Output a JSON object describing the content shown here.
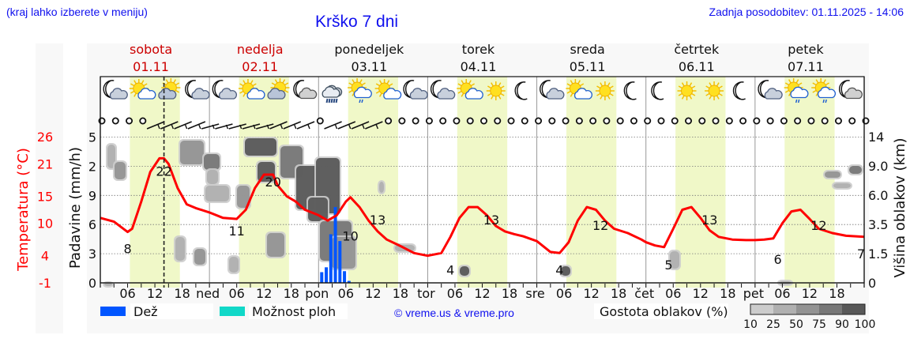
{
  "header": {
    "hint": "(kraj lahko izberete v meniju)",
    "title": "Krško 7 dni",
    "last_update": "Zadnja posodobitev: 01.11.2025 - 14:06"
  },
  "days": [
    {
      "name": "sobota",
      "date": "01.11",
      "weekend": true,
      "abbr": ""
    },
    {
      "name": "nedelja",
      "date": "02.11",
      "weekend": true,
      "abbr": "ned"
    },
    {
      "name": "ponedeljek",
      "date": "03.11",
      "weekend": false,
      "abbr": "pon"
    },
    {
      "name": "torek",
      "date": "04.11",
      "weekend": false,
      "abbr": "tor"
    },
    {
      "name": "sreda",
      "date": "05.11",
      "weekend": false,
      "abbr": "sre"
    },
    {
      "name": "četrtek",
      "date": "06.11",
      "weekend": false,
      "abbr": "čet"
    },
    {
      "name": "petek",
      "date": "07.11",
      "weekend": false,
      "abbr": "pet"
    }
  ],
  "icons": [
    [
      "moon-cloud",
      "sun-cloud",
      "sun-cloud-gray",
      "moon-cloud"
    ],
    [
      "moon-cloud",
      "sun-cloud",
      "sun-cloud-gray",
      "moon-cloud-gray"
    ],
    [
      "cloud-rain",
      "sun-cloud-drizzle",
      "sun-cloud",
      "moon-cloud"
    ],
    [
      "moon-cloud",
      "sun-cloud",
      "sun",
      "moon"
    ],
    [
      "moon-cloud",
      "sun-cloud",
      "sun",
      "moon"
    ],
    [
      "moon",
      "sun",
      "sun",
      "moon"
    ],
    [
      "moon-cloud",
      "sun-cloud-drizzle",
      "sun-cloud-drizzle",
      "moon-cloud-gray"
    ]
  ],
  "legend": {
    "rain_label": "Dež",
    "rain_color": "#0055ff",
    "showers_label": "Možnost ploh",
    "showers_color": "#11d8c8",
    "credit": "© vreme.us & vreme.pro",
    "cloud_density_label": "Gostota oblakov (%)",
    "cloud_density_steps": [
      "10",
      "25",
      "50",
      "75",
      "90",
      "100"
    ],
    "cloud_density_colors": [
      "#cccccc",
      "#b0b0b0",
      "#939393",
      "#777777",
      "#585858"
    ]
  },
  "colors": {
    "temperature": "#ff0000",
    "weekend_day": "#cc0000",
    "link_blue": "#1010ee",
    "daylight_band": "#f0f8c8"
  },
  "chart_data": {
    "type": "line",
    "title": "Krško 7 dni",
    "xlabel": "",
    "x_tick_labels": [
      "06",
      "12",
      "18",
      "ned",
      "06",
      "12",
      "18",
      "pon",
      "06",
      "12",
      "18",
      "tor",
      "06",
      "12",
      "18",
      "sre",
      "06",
      "12",
      "18",
      "čet",
      "06",
      "12",
      "18",
      "pet",
      "06",
      "12",
      "18"
    ],
    "now_marker_hour": 14,
    "axes": {
      "temperature": {
        "label": "Temperatura (°C)",
        "ticks": [
          "-1",
          "4",
          "10",
          "15",
          "21",
          "26"
        ],
        "range": [
          -1,
          26
        ]
      },
      "precipitation": {
        "label": "Padavine (mm/h)",
        "ticks": [
          "0",
          "3",
          "6",
          "9",
          "2",
          "5"
        ],
        "range": [
          0,
          15
        ]
      },
      "cloud_height": {
        "label": "Višina oblakov (km)",
        "ticks": [
          "0",
          "1.5",
          "3.5",
          "6.0",
          "9.0",
          "14"
        ]
      }
    },
    "series": [
      {
        "name": "Temperatura",
        "unit": "°C",
        "hours": [
          0,
          3,
          6,
          7,
          9,
          11,
          13,
          14,
          15,
          17,
          19,
          21,
          24,
          27,
          30,
          32,
          34,
          36,
          38,
          39,
          41,
          43,
          45,
          48,
          50,
          52,
          54,
          55,
          57,
          59,
          61,
          63,
          66,
          69,
          72,
          75,
          77,
          79,
          81,
          83,
          85,
          87,
          89,
          91,
          93,
          96,
          99,
          101,
          103,
          105,
          107,
          109,
          111,
          113,
          116,
          119,
          120,
          122,
          124,
          126,
          128,
          130,
          132,
          134,
          136,
          139,
          142,
          144,
          146,
          148,
          150,
          152,
          154,
          156,
          158,
          161,
          164,
          168
        ],
        "values": [
          11,
          10.3,
          8.4,
          9,
          14,
          19.5,
          22,
          22,
          21,
          16.5,
          13.5,
          12.8,
          12,
          11,
          10.8,
          12.5,
          16.5,
          19,
          19,
          17,
          15,
          14,
          12.5,
          11.5,
          10.5,
          11.5,
          14,
          14.8,
          13,
          10.5,
          8.5,
          7,
          5.8,
          4.5,
          4,
          4.5,
          7.5,
          11,
          13,
          13,
          11.5,
          9.5,
          8.5,
          8,
          7.6,
          6.7,
          4.7,
          4.5,
          6.5,
          10.5,
          13,
          12.5,
          10.5,
          9,
          8.2,
          7,
          6.5,
          5.9,
          5.6,
          9,
          12.5,
          13,
          11,
          8.7,
          7.5,
          7,
          6.9,
          6.9,
          7,
          7.2,
          10,
          12.2,
          12.5,
          10.8,
          9,
          8.2,
          7.7,
          7.5
        ],
        "labels": [
          {
            "hour": 6,
            "value": 8,
            "text": "8"
          },
          {
            "hour": 14,
            "value": 22,
            "text": "22"
          },
          {
            "hour": 30,
            "value": 11,
            "text": "11"
          },
          {
            "hour": 38,
            "value": 20,
            "text": "20"
          },
          {
            "hour": 55,
            "value": 10,
            "text": "10"
          },
          {
            "hour": 61,
            "value": 13,
            "text": "13"
          },
          {
            "hour": 77,
            "value": 4,
            "text": "4"
          },
          {
            "hour": 86,
            "value": 13,
            "text": "13"
          },
          {
            "hour": 101,
            "value": 4,
            "text": "4"
          },
          {
            "hour": 110,
            "value": 12,
            "text": "12"
          },
          {
            "hour": 125,
            "value": 5,
            "text": "5"
          },
          {
            "hour": 134,
            "value": 13,
            "text": "13"
          },
          {
            "hour": 149,
            "value": 6,
            "text": "6"
          },
          {
            "hour": 158,
            "value": 12,
            "text": "12"
          },
          {
            "hour": 168,
            "value": 7,
            "text": "7"
          }
        ]
      },
      {
        "name": "Dež",
        "unit": "mm/h",
        "type": "bar",
        "hours": [
          48,
          49,
          50,
          51,
          52,
          53,
          54
        ],
        "values": [
          1.1,
          1.6,
          5.0,
          7.8,
          4.3,
          1.2,
          0.2
        ]
      }
    ],
    "cloud_density_regions": [
      {
        "hour_from": 1,
        "hour_to": 3,
        "level": 2
      },
      {
        "hour_from": 3,
        "hour_to": 6,
        "level": 2
      },
      {
        "hour_from": 15,
        "hour_to": 18,
        "level": 3
      },
      {
        "hour_from": 18,
        "hour_to": 25,
        "level": 4
      },
      {
        "hour_from": 31,
        "hour_to": 40,
        "level": 5
      },
      {
        "hour_from": 40,
        "hour_to": 50,
        "level": 5
      },
      {
        "hour_from": 45,
        "hour_to": 56,
        "level": 5
      },
      {
        "hour_from": 77,
        "hour_to": 78,
        "level": 5
      },
      {
        "hour_from": 101,
        "hour_to": 103,
        "level": 5
      },
      {
        "hour_from": 160,
        "hour_to": 168,
        "level": 3
      }
    ]
  }
}
